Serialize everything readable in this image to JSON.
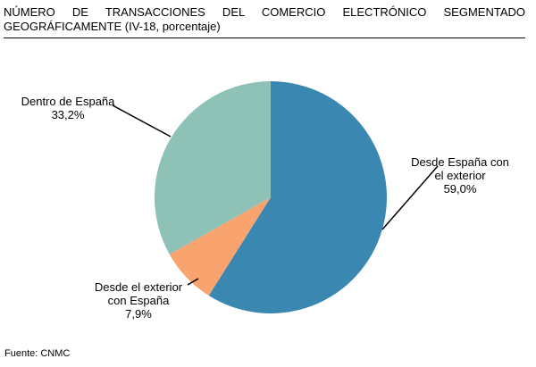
{
  "title_line1": "NÚMERO DE TRANSACCIONES DEL COMERCIO ELECTRÓNICO SEGMENTADO",
  "title_line2": "GEOGRÁFICAMENTE (IV-18, porcentaje)",
  "source": "Fuente: CNMC",
  "colors": {
    "desde_espana_exterior": "#3a87b2",
    "desde_exterior_espana": "#f9a36e",
    "dentro_espana": "#8fc2b6"
  },
  "chart_data": {
    "type": "pie",
    "title": "NÚMERO DE TRANSACCIONES DEL COMERCIO ELECTRÓNICO SEGMENTADO GEOGRÁFICAMENTE (IV-18, porcentaje)",
    "slices": [
      {
        "label_lines": [
          "Desde España con",
          "el exterior"
        ],
        "value": 59.0,
        "value_text": "59,0%",
        "color": "#3a87b2"
      },
      {
        "label_lines": [
          "Desde el exterior",
          "con España"
        ],
        "value": 7.9,
        "value_text": "7,9%",
        "color": "#f9a36e"
      },
      {
        "label_lines": [
          "Dentro de España"
        ],
        "value": 33.2,
        "value_text": "33,2%",
        "color": "#8fc2b6"
      }
    ]
  }
}
